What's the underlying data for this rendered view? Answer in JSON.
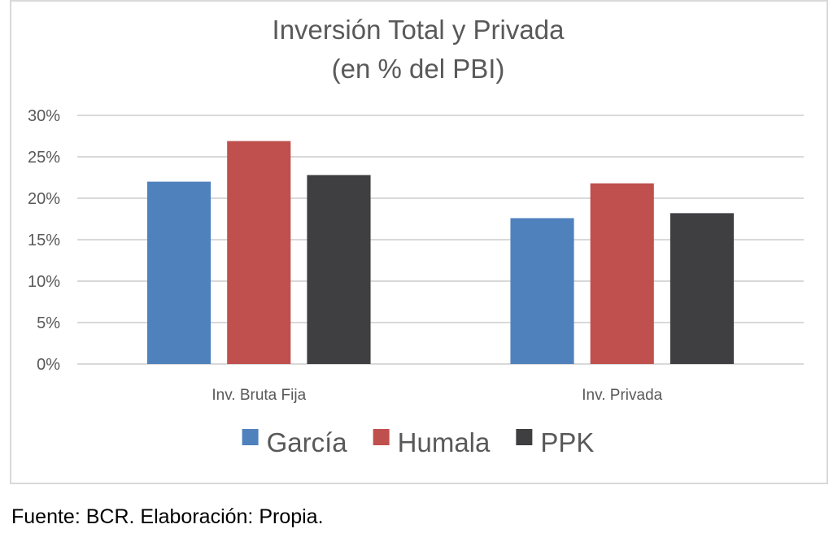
{
  "source_note": "Fuente: BCR. Elaboración: Propia.",
  "chart_data": {
    "type": "bar",
    "title": "Inversión Total y Privada",
    "subtitle": "(en % del PBI)",
    "categories": [
      "Inv. Bruta Fija",
      "Inv. Privada"
    ],
    "series": [
      {
        "name": "García",
        "color": "#4f81bd",
        "values": [
          22.0,
          17.6
        ]
      },
      {
        "name": "Humala",
        "color": "#c0504d",
        "values": [
          26.9,
          21.8
        ]
      },
      {
        "name": "PPK",
        "color": "#3f3e41",
        "values": [
          22.8,
          18.2
        ]
      }
    ],
    "ylim": [
      0,
      30
    ],
    "yticks": [
      0,
      5,
      10,
      15,
      20,
      25,
      30
    ],
    "ytick_labels": [
      "0%",
      "5%",
      "10%",
      "15%",
      "20%",
      "25%",
      "30%"
    ],
    "grid": true,
    "legend_position": "bottom",
    "xlabel": "",
    "ylabel": ""
  }
}
